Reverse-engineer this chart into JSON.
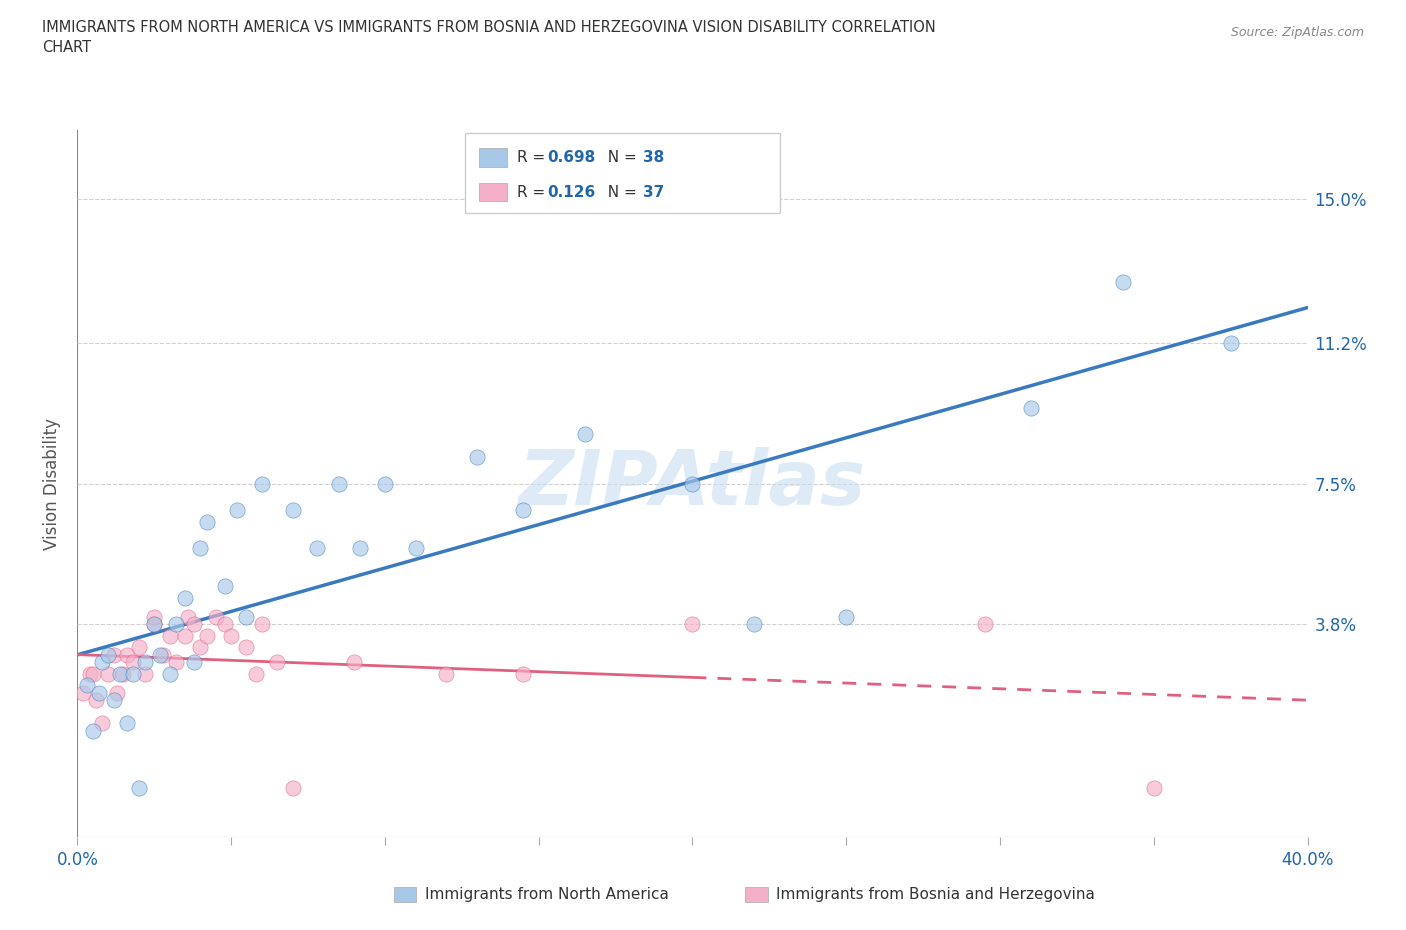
{
  "title_line1": "IMMIGRANTS FROM NORTH AMERICA VS IMMIGRANTS FROM BOSNIA AND HERZEGOVINA VISION DISABILITY CORRELATION",
  "title_line2": "CHART",
  "source_text": "Source: ZipAtlas.com",
  "ylabel": "Vision Disability",
  "ytick_labels": [
    "3.8%",
    "7.5%",
    "11.2%",
    "15.0%"
  ],
  "ytick_values": [
    0.038,
    0.075,
    0.112,
    0.15
  ],
  "xlim": [
    0.0,
    0.4
  ],
  "ylim": [
    -0.018,
    0.168
  ],
  "color_blue_scatter": "#a8c8e8",
  "color_pink_scatter": "#f4b0c8",
  "color_blue_line": "#3a7abf",
  "color_pink_line": "#e06080",
  "color_text_blue": "#2166ac",
  "color_watermark": "#c8dff0",
  "color_gray_grid": "#d0d0d0",
  "legend_label1": "Immigrants from North America",
  "legend_label2": "Immigrants from Bosnia and Herzegovina",
  "blue_x": [
    0.003,
    0.005,
    0.007,
    0.008,
    0.01,
    0.012,
    0.014,
    0.016,
    0.018,
    0.02,
    0.022,
    0.025,
    0.027,
    0.03,
    0.032,
    0.035,
    0.038,
    0.04,
    0.042,
    0.048,
    0.052,
    0.055,
    0.06,
    0.07,
    0.078,
    0.085,
    0.092,
    0.1,
    0.11,
    0.13,
    0.145,
    0.165,
    0.2,
    0.22,
    0.25,
    0.31,
    0.34,
    0.375
  ],
  "blue_y": [
    0.022,
    0.01,
    0.02,
    0.028,
    0.03,
    0.018,
    0.025,
    0.012,
    0.025,
    -0.005,
    0.028,
    0.038,
    0.03,
    0.025,
    0.038,
    0.045,
    0.028,
    0.058,
    0.065,
    0.048,
    0.068,
    0.04,
    0.075,
    0.068,
    0.058,
    0.075,
    0.058,
    0.075,
    0.058,
    0.082,
    0.068,
    0.088,
    0.075,
    0.038,
    0.04,
    0.095,
    0.128,
    0.112
  ],
  "pink_x": [
    0.002,
    0.004,
    0.005,
    0.006,
    0.008,
    0.01,
    0.012,
    0.013,
    0.015,
    0.016,
    0.018,
    0.02,
    0.022,
    0.025,
    0.025,
    0.028,
    0.03,
    0.032,
    0.035,
    0.036,
    0.038,
    0.04,
    0.042,
    0.045,
    0.048,
    0.05,
    0.055,
    0.058,
    0.06,
    0.065,
    0.07,
    0.09,
    0.12,
    0.145,
    0.2,
    0.295,
    0.35
  ],
  "pink_y": [
    0.02,
    0.025,
    0.025,
    0.018,
    0.012,
    0.025,
    0.03,
    0.02,
    0.025,
    0.03,
    0.028,
    0.032,
    0.025,
    0.038,
    0.04,
    0.03,
    0.035,
    0.028,
    0.035,
    0.04,
    0.038,
    0.032,
    0.035,
    0.04,
    0.038,
    0.035,
    0.032,
    0.025,
    0.038,
    0.028,
    -0.005,
    0.028,
    0.025,
    0.025,
    0.038,
    0.038,
    -0.005
  ]
}
